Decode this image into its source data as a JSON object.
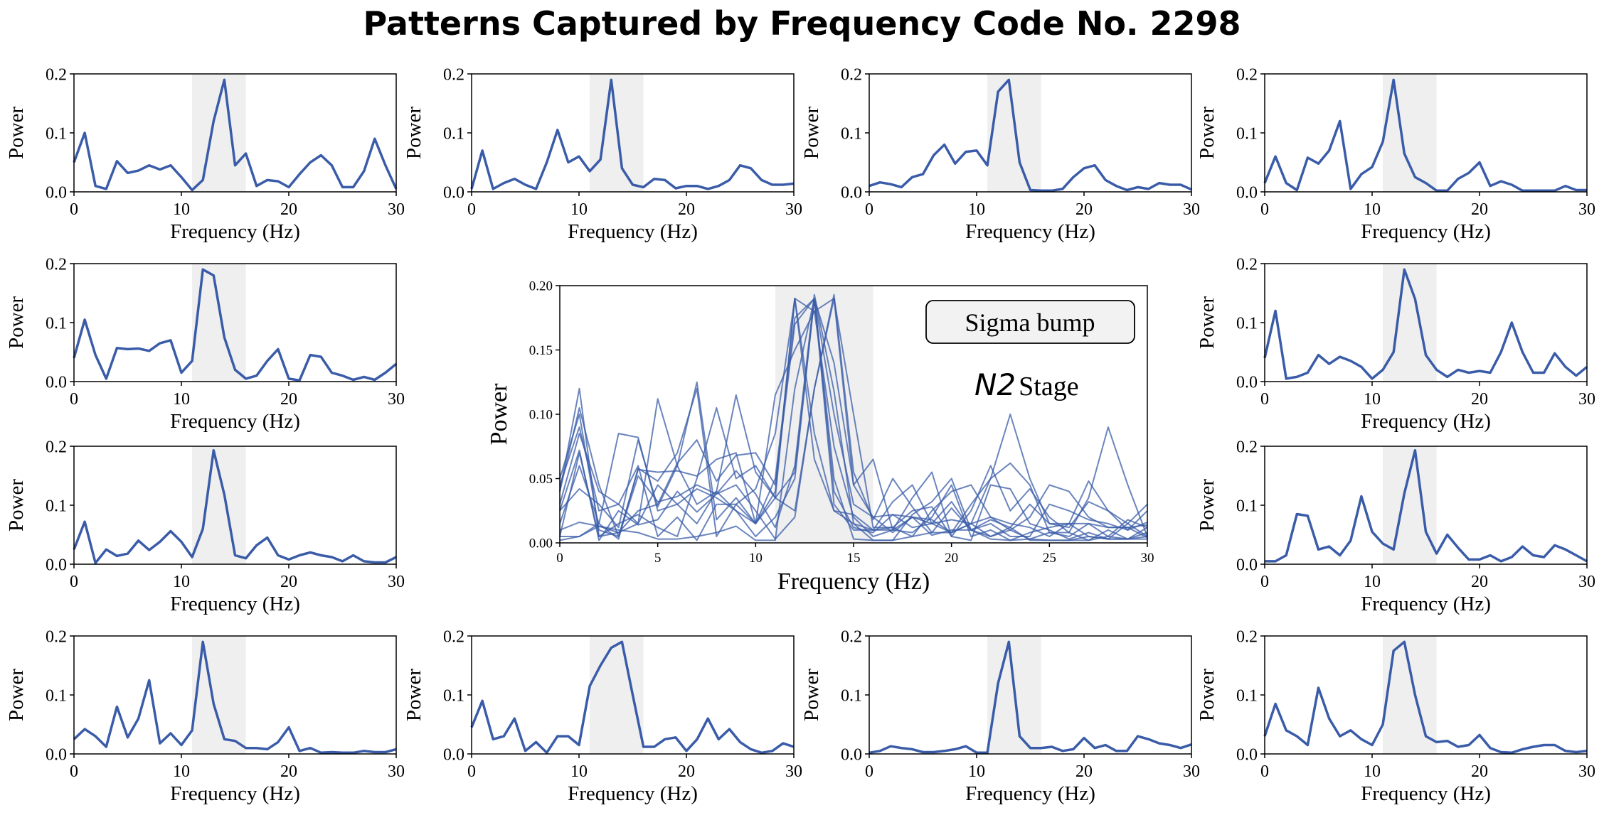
{
  "title": "Patterns Captured by Frequency Code No. 2298",
  "colors": {
    "line": "#3a5ca8",
    "band": "#efefef",
    "axis": "#000000"
  },
  "annotation": {
    "box_text": "Sigma bump",
    "stage_italic": "N2",
    "stage_text": "Stage"
  },
  "chart_data": {
    "type": "line",
    "x": [
      0,
      1,
      2,
      3,
      4,
      5,
      6,
      7,
      8,
      9,
      10,
      11,
      12,
      13,
      14,
      15,
      16,
      17,
      18,
      19,
      20,
      21,
      22,
      23,
      24,
      25,
      26,
      27,
      28,
      29,
      30
    ],
    "xlabel": "Frequency (Hz)",
    "ylabel": "Power",
    "xlim": [
      0,
      30
    ],
    "ylim": [
      0,
      0.2
    ],
    "xticks": [
      "0",
      "10",
      "20",
      "30"
    ],
    "yticks": [
      "0.0",
      "0.1",
      "0.2"
    ],
    "main_xticks": [
      "0",
      "5",
      "10",
      "15",
      "20",
      "25",
      "30"
    ],
    "main_yticks": [
      "0.00",
      "0.05",
      "0.10",
      "0.15",
      "0.20"
    ],
    "highlight_band": [
      11,
      16
    ],
    "grid": false,
    "panels": [
      {
        "values": [
          0.05,
          0.1,
          0.01,
          0.005,
          0.052,
          0.032,
          0.036,
          0.045,
          0.038,
          0.045,
          0.025,
          0.003,
          0.02,
          0.12,
          0.19,
          0.045,
          0.065,
          0.01,
          0.02,
          0.018,
          0.008,
          0.03,
          0.05,
          0.062,
          0.045,
          0.008,
          0.008,
          0.035,
          0.09,
          0.045,
          0.005
        ]
      },
      {
        "values": [
          0.005,
          0.07,
          0.005,
          0.015,
          0.022,
          0.012,
          0.005,
          0.05,
          0.105,
          0.05,
          0.06,
          0.035,
          0.055,
          0.19,
          0.04,
          0.012,
          0.008,
          0.022,
          0.02,
          0.006,
          0.01,
          0.01,
          0.005,
          0.01,
          0.02,
          0.045,
          0.04,
          0.02,
          0.012,
          0.012,
          0.014
        ]
      },
      {
        "values": [
          0.01,
          0.016,
          0.013,
          0.008,
          0.025,
          0.03,
          0.062,
          0.08,
          0.048,
          0.068,
          0.07,
          0.045,
          0.17,
          0.19,
          0.05,
          0.003,
          0.002,
          0.002,
          0.005,
          0.025,
          0.04,
          0.045,
          0.02,
          0.01,
          0.003,
          0.008,
          0.005,
          0.015,
          0.012,
          0.012,
          0.004
        ]
      },
      {
        "values": [
          0.015,
          0.06,
          0.015,
          0.003,
          0.058,
          0.048,
          0.07,
          0.12,
          0.005,
          0.03,
          0.042,
          0.085,
          0.19,
          0.065,
          0.025,
          0.015,
          0.002,
          0.002,
          0.022,
          0.032,
          0.05,
          0.01,
          0.018,
          0.012,
          0.002,
          0.002,
          0.002,
          0.002,
          0.01,
          0.003,
          0.003
        ]
      },
      {
        "values": [
          0.04,
          0.105,
          0.045,
          0.005,
          0.057,
          0.055,
          0.056,
          0.052,
          0.065,
          0.07,
          0.015,
          0.035,
          0.19,
          0.18,
          0.075,
          0.02,
          0.005,
          0.01,
          0.035,
          0.055,
          0.005,
          0.002,
          0.045,
          0.042,
          0.015,
          0.01,
          0.003,
          0.008,
          0.003,
          0.015,
          0.03
        ]
      },
      {
        "values": [
          0.04,
          0.12,
          0.005,
          0.008,
          0.015,
          0.045,
          0.03,
          0.042,
          0.035,
          0.025,
          0.005,
          0.02,
          0.05,
          0.19,
          0.14,
          0.045,
          0.02,
          0.008,
          0.02,
          0.015,
          0.018,
          0.015,
          0.05,
          0.1,
          0.05,
          0.015,
          0.015,
          0.048,
          0.025,
          0.01,
          0.025
        ]
      },
      {
        "values": [
          0.025,
          0.072,
          0.002,
          0.025,
          0.014,
          0.018,
          0.04,
          0.024,
          0.038,
          0.056,
          0.038,
          0.012,
          0.06,
          0.193,
          0.118,
          0.015,
          0.01,
          0.032,
          0.045,
          0.015,
          0.008,
          0.015,
          0.02,
          0.015,
          0.012,
          0.005,
          0.015,
          0.005,
          0.003,
          0.003,
          0.012
        ]
      },
      {
        "values": [
          0.005,
          0.005,
          0.015,
          0.085,
          0.082,
          0.025,
          0.03,
          0.015,
          0.04,
          0.115,
          0.055,
          0.035,
          0.025,
          0.12,
          0.193,
          0.055,
          0.018,
          0.05,
          0.028,
          0.008,
          0.008,
          0.015,
          0.005,
          0.012,
          0.03,
          0.015,
          0.012,
          0.032,
          0.025,
          0.015,
          0.005
        ]
      },
      {
        "values": [
          0.025,
          0.042,
          0.03,
          0.012,
          0.08,
          0.028,
          0.06,
          0.125,
          0.018,
          0.035,
          0.015,
          0.04,
          0.19,
          0.085,
          0.025,
          0.022,
          0.01,
          0.01,
          0.008,
          0.02,
          0.045,
          0.005,
          0.01,
          0.002,
          0.003,
          0.002,
          0.002,
          0.005,
          0.003,
          0.003,
          0.008
        ]
      },
      {
        "values": [
          0.045,
          0.09,
          0.025,
          0.03,
          0.06,
          0.005,
          0.02,
          0.002,
          0.03,
          0.03,
          0.015,
          0.115,
          0.15,
          0.18,
          0.19,
          0.1,
          0.012,
          0.012,
          0.025,
          0.028,
          0.005,
          0.025,
          0.06,
          0.025,
          0.042,
          0.02,
          0.008,
          0.002,
          0.005,
          0.018,
          0.012
        ]
      },
      {
        "values": [
          0.002,
          0.005,
          0.013,
          0.01,
          0.008,
          0.003,
          0.003,
          0.005,
          0.008,
          0.013,
          0.002,
          0.002,
          0.12,
          0.19,
          0.03,
          0.01,
          0.01,
          0.012,
          0.005,
          0.008,
          0.027,
          0.01,
          0.015,
          0.005,
          0.005,
          0.03,
          0.025,
          0.018,
          0.015,
          0.01,
          0.016
        ]
      },
      {
        "values": [
          0.03,
          0.085,
          0.04,
          0.03,
          0.015,
          0.112,
          0.06,
          0.03,
          0.04,
          0.025,
          0.015,
          0.05,
          0.175,
          0.19,
          0.1,
          0.03,
          0.02,
          0.022,
          0.012,
          0.015,
          0.032,
          0.01,
          0.003,
          0.002,
          0.008,
          0.012,
          0.015,
          0.015,
          0.005,
          0.003,
          0.005
        ]
      }
    ]
  }
}
